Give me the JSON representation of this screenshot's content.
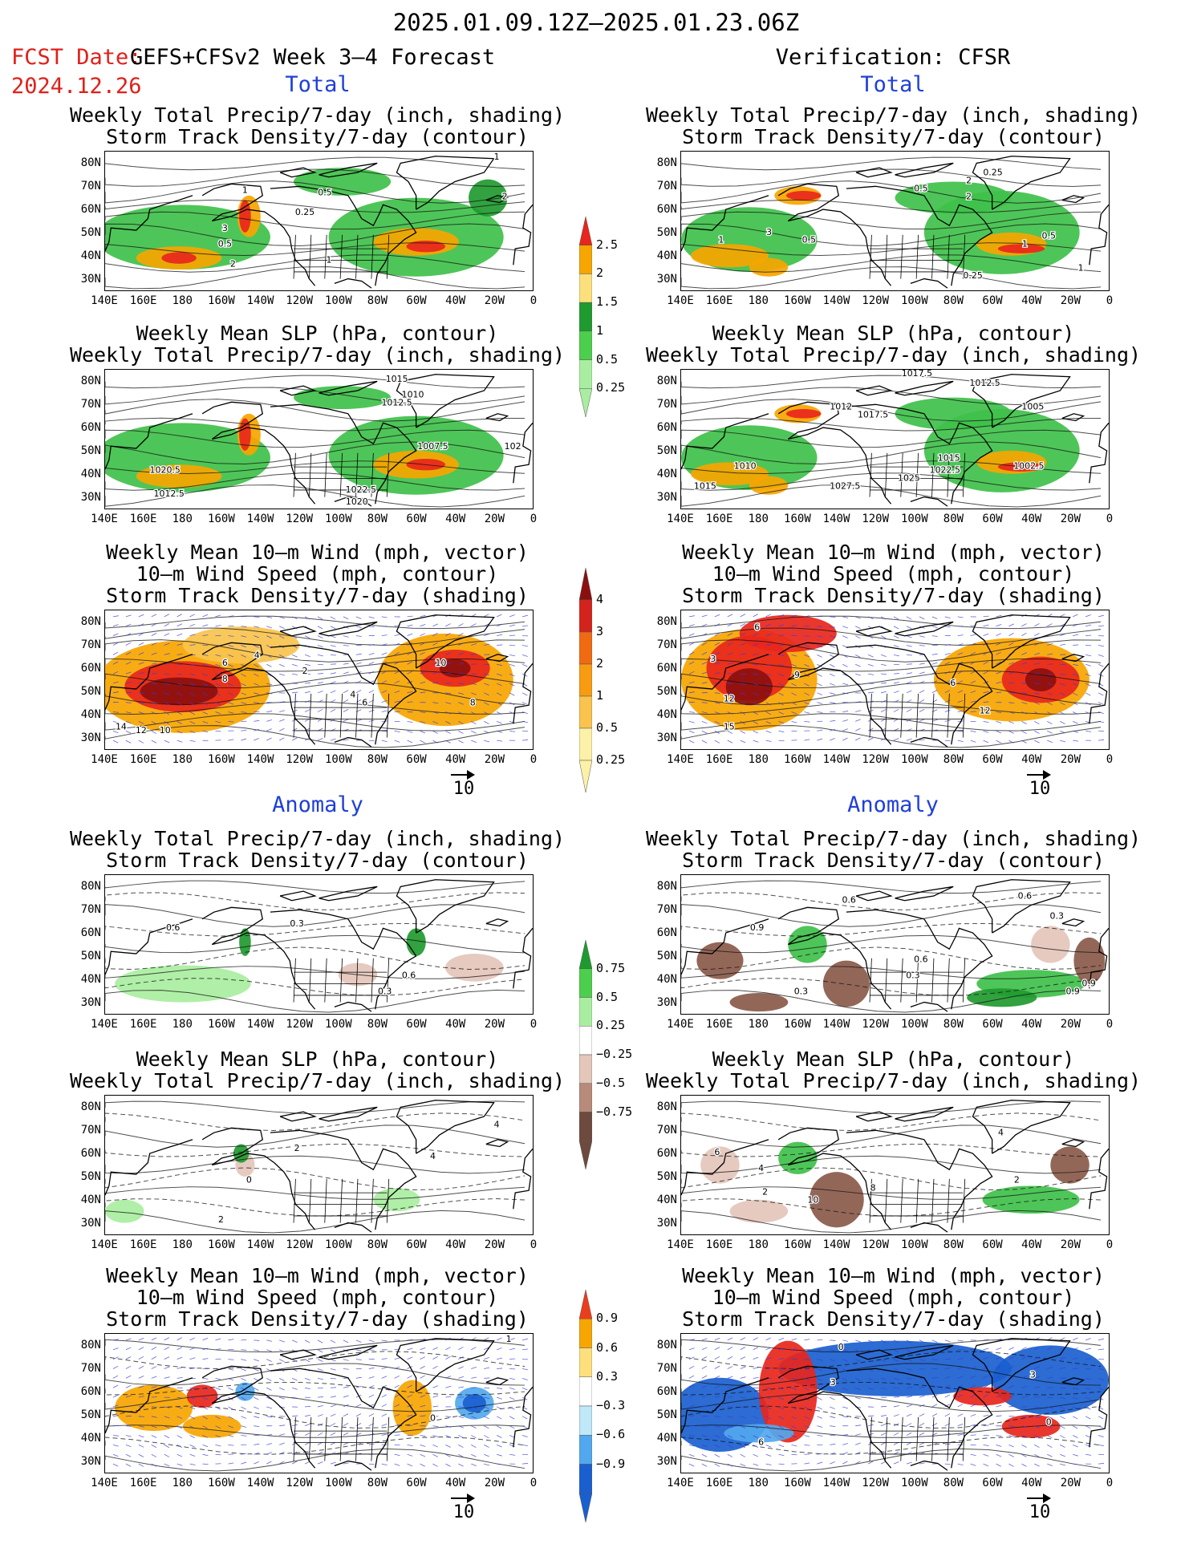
{
  "header": {
    "date_range": "2025.01.09.12Z–2025.01.23.06Z",
    "fcst_date_label": "FCST Date:",
    "fcst_date_value": "2024.12.26",
    "forecast_label": "GEFS+CFSv2 Week 3–4 Forecast",
    "verification_label": "Verification: CFSR"
  },
  "sections": {
    "total": "Total",
    "anomaly": "Anomaly"
  },
  "titles": {
    "precip_storm": [
      "Weekly Total Precip/7-day (inch, shading)",
      "Storm Track Density/7-day (contour)"
    ],
    "slp_precip": [
      "Weekly Mean SLP (hPa, contour)",
      "Weekly Total Precip/7-day (inch, shading)"
    ],
    "wind_storm": [
      "Weekly Mean 10–m Wind (mph, vector)",
      "10–m Wind Speed (mph, contour)",
      "Storm Track Density/7-day (shading)"
    ]
  },
  "axes": {
    "lat_ticks": [
      "80N",
      "70N",
      "60N",
      "50N",
      "40N",
      "30N"
    ],
    "lon_ticks": [
      "140E",
      "160E",
      "180",
      "160W",
      "140W",
      "120W",
      "100W",
      "80W",
      "60W",
      "40W",
      "20W",
      "0"
    ]
  },
  "vector_reference": "10",
  "colorbars": {
    "precip_total": {
      "labels": [
        "2.5",
        "2",
        "1.5",
        "1",
        "0.5",
        "0.25"
      ],
      "colors": [
        "#e8261c",
        "#f7a500",
        "#fde07c",
        "#1f9a2f",
        "#4ccf4c",
        "#a9eea0"
      ]
    },
    "storm_total": {
      "labels": [
        "4",
        "3",
        "2",
        "1",
        "0.5",
        "0.25"
      ],
      "colors": [
        "#8b0f0f",
        "#d4231c",
        "#f06a12",
        "#f89b10",
        "#f9c34d",
        "#fdf1a8"
      ]
    },
    "precip_anom": {
      "labels": [
        "0.75",
        "0.5",
        "0.25",
        "−0.25",
        "−0.5",
        "−0.75"
      ],
      "colors": [
        "#1f9a2f",
        "#4ccf4c",
        "#a9eea0",
        "#ffffff",
        "#e4c6bb",
        "#b78a7a",
        "#6e4a3e"
      ]
    },
    "storm_anom": {
      "labels": [
        "0.9",
        "0.6",
        "0.3",
        "−0.3",
        "−0.6",
        "−0.9"
      ],
      "colors": [
        "#ec3d1c",
        "#f7a500",
        "#fde07c",
        "#ffffff",
        "#bfe8f8",
        "#52a8ee",
        "#1a5fcf"
      ]
    },
    "pal": {
      "land_green": "#3fc04a",
      "dark_green": "#1f9a2f",
      "orange": "#f7a500",
      "red": "#e8261c",
      "brown": "#8a5a4a",
      "blue": "#1a5fcf",
      "lightblue": "#52a8ee"
    }
  },
  "chart_data": [
    {
      "id": "fcst_total_precip",
      "type": "heatmap",
      "map_extent": {
        "lon": [
          "140E",
          "0"
        ],
        "lat": [
          "25N",
          "85N"
        ]
      },
      "contour_labels": [
        "1",
        "0.5",
        "0.25",
        "2",
        "3",
        "1",
        "2",
        "0.5",
        "1"
      ]
    },
    {
      "id": "verif_total_precip",
      "type": "heatmap",
      "map_extent": {
        "lon": [
          "140E",
          "0"
        ],
        "lat": [
          "25N",
          "85N"
        ]
      },
      "contour_labels": [
        "2",
        "0.25",
        "0.5",
        "1",
        "3",
        "2",
        "1",
        "0.5",
        "0.5",
        "0.25",
        "1"
      ]
    },
    {
      "id": "fcst_total_slp",
      "type": "heatmap",
      "map_extent": {
        "lon": [
          "140E",
          "0"
        ],
        "lat": [
          "25N",
          "85N"
        ]
      },
      "contour_labels": [
        "1015",
        "1010",
        "1012.5",
        "1007.5",
        "1022.5",
        "1020",
        "1020.5",
        "1012.5",
        "102"
      ]
    },
    {
      "id": "verif_total_slp",
      "type": "heatmap",
      "map_extent": {
        "lon": [
          "140E",
          "0"
        ],
        "lat": [
          "25N",
          "85N"
        ]
      },
      "contour_labels": [
        "1017.5",
        "1012.5",
        "1012",
        "1017.5",
        "1005",
        "1015",
        "1022.5",
        "1002.5",
        "1025",
        "1027.5",
        "1010",
        "1015"
      ]
    },
    {
      "id": "fcst_total_wind",
      "type": "heatmap",
      "map_extent": {
        "lon": [
          "140E",
          "0"
        ],
        "lat": [
          "25N",
          "85N"
        ]
      },
      "contour_labels": [
        "8",
        "6",
        "2",
        "4",
        "6",
        "10",
        "8",
        "4",
        "14",
        "12",
        "10"
      ]
    },
    {
      "id": "verif_total_wind",
      "type": "heatmap",
      "map_extent": {
        "lon": [
          "140E",
          "0"
        ],
        "lat": [
          "25N",
          "85N"
        ]
      },
      "contour_labels": [
        "6",
        "9",
        "12",
        "15",
        "6",
        "12",
        "3"
      ]
    },
    {
      "id": "fcst_anom_precip",
      "type": "heatmap",
      "map_extent": {
        "lon": [
          "140E",
          "0"
        ],
        "lat": [
          "25N",
          "85N"
        ]
      },
      "contour_labels": [
        "0.6",
        "0.3",
        "0.6",
        "0.3"
      ]
    },
    {
      "id": "verif_anom_precip",
      "type": "heatmap",
      "map_extent": {
        "lon": [
          "140E",
          "0"
        ],
        "lat": [
          "25N",
          "85N"
        ]
      },
      "contour_labels": [
        "0.9",
        "0.6",
        "0.3",
        "0.6",
        "0.9",
        "0.3",
        "0.6",
        "0.3",
        "0.9"
      ]
    },
    {
      "id": "fcst_anom_slp",
      "type": "heatmap",
      "map_extent": {
        "lon": [
          "140E",
          "0"
        ],
        "lat": [
          "25N",
          "85N"
        ]
      },
      "contour_labels": [
        "2",
        "0",
        "4",
        "2",
        "4"
      ]
    },
    {
      "id": "verif_anom_slp",
      "type": "heatmap",
      "map_extent": {
        "lon": [
          "140E",
          "0"
        ],
        "lat": [
          "25N",
          "85N"
        ]
      },
      "contour_labels": [
        "6",
        "4",
        "8",
        "10",
        "2",
        "4",
        "2"
      ]
    },
    {
      "id": "fcst_anom_wind",
      "type": "heatmap",
      "map_extent": {
        "lon": [
          "140E",
          "0"
        ],
        "lat": [
          "25N",
          "85N"
        ]
      },
      "contour_labels": [
        "0",
        "1"
      ]
    },
    {
      "id": "verif_anom_wind",
      "type": "heatmap",
      "map_extent": {
        "lon": [
          "140E",
          "0"
        ],
        "lat": [
          "25N",
          "85N"
        ]
      },
      "contour_labels": [
        "6",
        "3",
        "0",
        "3",
        "0"
      ]
    }
  ]
}
